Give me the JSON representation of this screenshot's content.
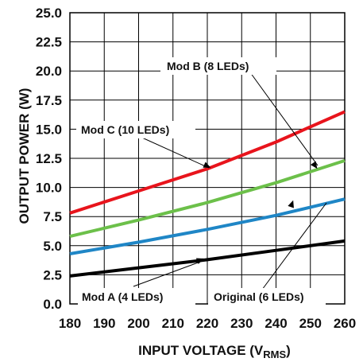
{
  "chart_data": {
    "type": "line",
    "title": "",
    "xlabel": "INPUT VOLTAGE (V",
    "xlabel_sub": "RMS",
    "xlabel_close": ")",
    "ylabel": "OUTPUT POWER (W)",
    "xlim": [
      180,
      260
    ],
    "ylim": [
      0,
      25
    ],
    "xticks": [
      "180",
      "190",
      "200",
      "210",
      "220",
      "230",
      "240",
      "250",
      "260"
    ],
    "yticks": [
      "0.0",
      "2.5",
      "5.0",
      "7.5",
      "10.0",
      "12.5",
      "15.0",
      "17.5",
      "20.0",
      "22.5",
      "25.0"
    ],
    "grid": true,
    "series": [
      {
        "name": "Original (6 LEDs)",
        "color": "#000000",
        "x": [
          180,
          200,
          220,
          240,
          260
        ],
        "y": [
          2.4,
          3.1,
          3.8,
          4.6,
          5.4
        ]
      },
      {
        "name": "Mod A (4 LEDs)",
        "color": "#1f86c6",
        "x": [
          180,
          200,
          220,
          240,
          260
        ],
        "y": [
          4.3,
          5.3,
          6.4,
          7.6,
          9.0
        ]
      },
      {
        "name": "Mod B (8 LEDs)",
        "color": "#6cc04a",
        "x": [
          180,
          200,
          220,
          240,
          260
        ],
        "y": [
          5.8,
          7.2,
          8.7,
          10.4,
          12.3
        ]
      },
      {
        "name": "Mod C (10 LEDs)",
        "color": "#e8141c",
        "x": [
          180,
          200,
          220,
          240,
          260
        ],
        "y": [
          7.8,
          9.7,
          11.6,
          13.9,
          16.5
        ]
      }
    ],
    "annotations": [
      {
        "text": "Mod B (8 LEDs)",
        "series": "Mod B (8 LEDs)",
        "x": 252,
        "y": 11.6
      },
      {
        "text": "Mod C (10 LEDs)",
        "series": "Mod C (10 LEDs)",
        "x": 221,
        "y": 11.7
      },
      {
        "text": "Mod A (4 LEDs)",
        "series": "Mod A (4 LEDs)",
        "x": 219,
        "y": 3.9
      },
      {
        "text": "Original (6 LEDs)",
        "series": "Original (6 LEDs)",
        "x": 245,
        "y": 8.9
      }
    ]
  }
}
